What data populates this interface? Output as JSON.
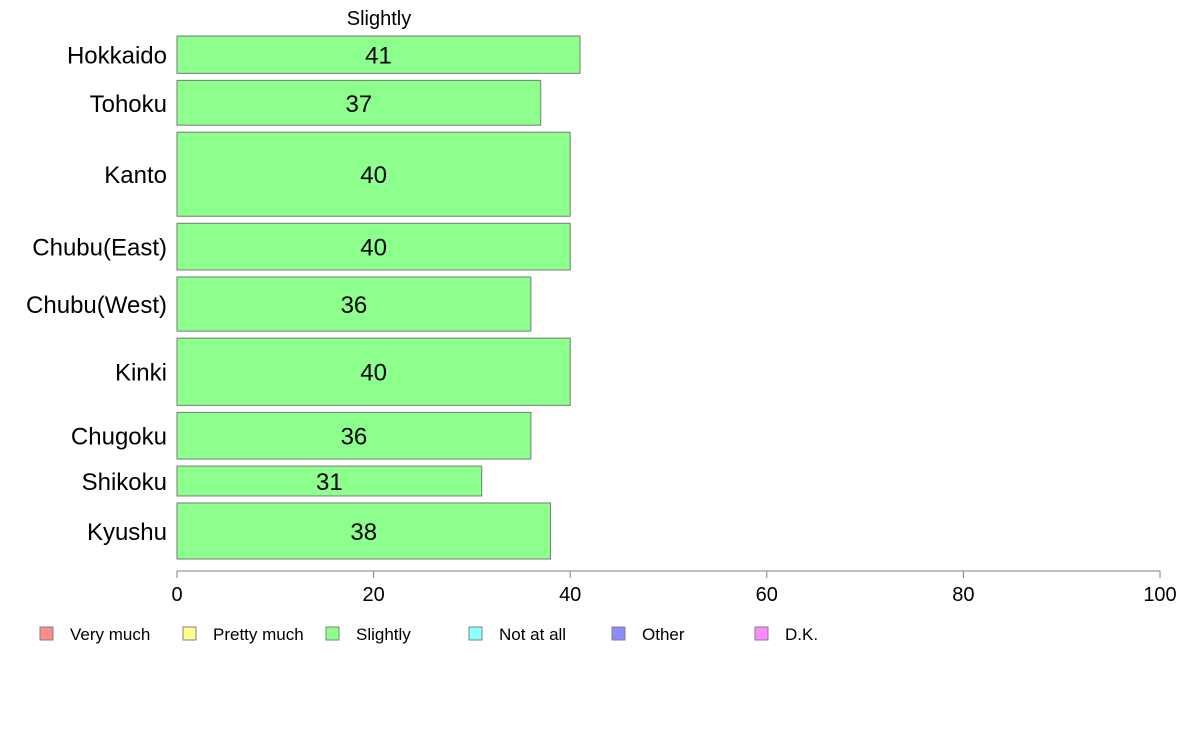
{
  "chart_data": {
    "type": "bar",
    "orientation": "horizontal",
    "title": "Slightly",
    "categories": [
      "Hokkaido",
      "Tohoku",
      "Kanto",
      "Chubu(East)",
      "Chubu(West)",
      "Kinki",
      "Chugoku",
      "Shikoku",
      "Kyushu"
    ],
    "values": [
      41,
      37,
      40,
      40,
      36,
      40,
      36,
      31,
      38
    ],
    "bar_thickness_weights": [
      2.0,
      2.4,
      4.5,
      2.5,
      2.9,
      3.6,
      2.5,
      1.6,
      3.0
    ],
    "xlim": [
      0,
      100
    ],
    "xticks": [
      0,
      20,
      40,
      60,
      80,
      100
    ],
    "bar_color": "#8cff8c",
    "bar_stroke": "#7a7a7a",
    "grid": false,
    "legend": {
      "placement": "bottom",
      "items": [
        {
          "label": "Very much",
          "color": "#ff8c8c"
        },
        {
          "label": "Pretty much",
          "color": "#ffff8c"
        },
        {
          "label": "Slightly",
          "color": "#8cff8c"
        },
        {
          "label": "Not at all",
          "color": "#8cffff"
        },
        {
          "label": "Other",
          "color": "#8c8cff"
        },
        {
          "label": "D.K.",
          "color": "#ff8cff"
        }
      ]
    }
  }
}
